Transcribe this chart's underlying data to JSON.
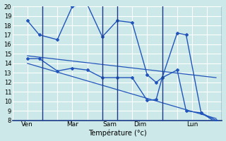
{
  "xlabel": "Température (°c)",
  "background_color": "#cce8e8",
  "grid_color": "#ffffff",
  "line_color": "#2255bb",
  "xlim": [
    0,
    7
  ],
  "ylim": [
    8,
    20
  ],
  "yticks": [
    8,
    9,
    10,
    11,
    12,
    13,
    14,
    15,
    16,
    17,
    18,
    19,
    20
  ],
  "vlines": [
    1,
    3,
    3.5,
    5,
    7
  ],
  "xtick_positions": [
    0.5,
    2,
    3.25,
    4.25,
    6
  ],
  "xtick_labels": [
    "Ven",
    "Mar",
    "Sam",
    "Dim",
    "Lun"
  ],
  "series": [
    {
      "x": [
        0.5,
        0.9,
        1.5,
        2.0,
        2.5,
        3.0,
        3.5,
        4.0,
        4.5,
        4.8,
        5.0,
        5.5,
        5.8,
        6.3,
        6.8
      ],
      "y": [
        18.5,
        17.0,
        16.5,
        20.0,
        20.2,
        16.8,
        18.5,
        18.3,
        12.8,
        12.0,
        12.5,
        17.2,
        17.0,
        8.8,
        7.8
      ]
    },
    {
      "x": [
        0.5,
        0.9,
        1.5,
        2.0,
        2.5,
        3.0,
        3.5,
        4.0,
        4.5,
        4.8,
        5.0,
        5.5,
        5.8,
        6.3,
        6.8
      ],
      "y": [
        14.5,
        14.5,
        13.2,
        13.5,
        13.3,
        12.5,
        12.5,
        12.5,
        10.1,
        10.2,
        12.5,
        13.3,
        9.0,
        8.8,
        8.0
      ]
    },
    {
      "x": [
        0.5,
        6.8
      ],
      "y": [
        14.8,
        12.5
      ]
    },
    {
      "x": [
        0.5,
        6.8
      ],
      "y": [
        14.0,
        8.2
      ]
    }
  ]
}
